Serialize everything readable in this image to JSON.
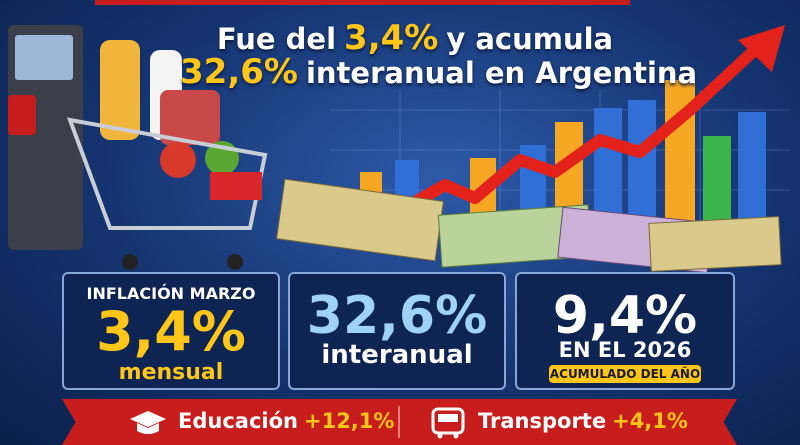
{
  "headline": {
    "line1": [
      "Fue del",
      "3,4%",
      "y acumula"
    ],
    "line2": [
      "32,6%",
      "interanual en Argentina"
    ]
  },
  "cards": [
    {
      "label": "INFLACIÓN MARZO",
      "value": "3,4%",
      "caption": "mensual"
    },
    {
      "value": "32,6%",
      "caption": "interanual"
    },
    {
      "value": "9,4%",
      "caption": "EN EL 2026",
      "badge": "ACUMULADO DEL AÑO"
    }
  ],
  "footer": [
    {
      "label": "Educación",
      "value": "+12,1%"
    },
    {
      "label": "Transporte",
      "value": "+4,1%"
    }
  ]
}
